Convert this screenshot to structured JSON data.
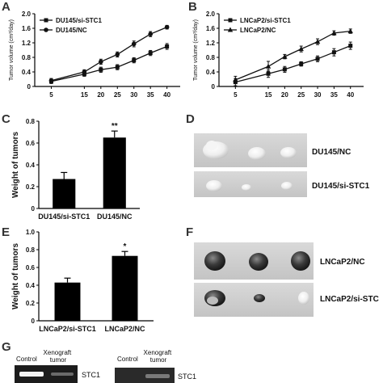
{
  "panels": {
    "A": "A",
    "B": "B",
    "C": "C",
    "D": "D",
    "E": "E",
    "F": "F",
    "G": "G"
  },
  "chart_data": [
    {
      "panel": "A",
      "type": "line",
      "ylabel": "Tumor volume (cm³/day)",
      "x": [
        5,
        15,
        20,
        25,
        30,
        35,
        40
      ],
      "xticks": [
        "5",
        "15",
        "20",
        "25",
        "30",
        "35",
        "40"
      ],
      "ylim": [
        0,
        2.0
      ],
      "yticks": [
        "0",
        "0.4",
        "0.8",
        "1.2",
        "1.6",
        "2.0"
      ],
      "legend": "top-left",
      "series": [
        {
          "name": "DU145/si-STC1",
          "marker": "square",
          "values": [
            0.14,
            0.34,
            0.46,
            0.53,
            0.72,
            0.92,
            1.1
          ],
          "errors": [
            0.06,
            0.06,
            0.07,
            0.07,
            0.07,
            0.07,
            0.08
          ]
        },
        {
          "name": "DU145/NC",
          "marker": "circle",
          "values": [
            0.16,
            0.4,
            0.68,
            0.88,
            1.17,
            1.44,
            1.63
          ],
          "errors": [
            0.06,
            0.06,
            0.07,
            0.07,
            0.08,
            0.07,
            0.05
          ]
        }
      ]
    },
    {
      "panel": "B",
      "type": "line",
      "ylabel": "Tumor volume (cm³/day)",
      "x": [
        5,
        15,
        20,
        25,
        30,
        35,
        40
      ],
      "xticks": [
        "5",
        "15",
        "20",
        "25",
        "30",
        "35",
        "40"
      ],
      "ylim": [
        0,
        2.0
      ],
      "yticks": [
        "0",
        "0.4",
        "0.8",
        "1.2",
        "1.6",
        "2.0"
      ],
      "legend": "top-left",
      "series": [
        {
          "name": "LNCaP2/si-STC1",
          "marker": "square",
          "values": [
            0.12,
            0.35,
            0.47,
            0.62,
            0.76,
            0.94,
            1.12
          ],
          "errors": [
            0.1,
            0.1,
            0.08,
            0.06,
            0.08,
            0.1,
            0.1
          ]
        },
        {
          "name": "LNCaP2/NC",
          "marker": "triangle",
          "values": [
            0.18,
            0.55,
            0.82,
            1.03,
            1.23,
            1.47,
            1.52
          ],
          "errors": [
            0.1,
            0.14,
            0.06,
            0.08,
            0.08,
            0.06,
            0.06
          ]
        }
      ]
    },
    {
      "panel": "C",
      "type": "bar",
      "ylabel": "Weight of tumors",
      "categories": [
        "DU145/si-STC1",
        "DU145/NC"
      ],
      "values": [
        0.27,
        0.65
      ],
      "errors": [
        0.06,
        0.06
      ],
      "annotations": [
        "",
        "**"
      ],
      "ylim": [
        0,
        0.8
      ],
      "yticks": [
        "0",
        "0.2",
        "0.4",
        "0.6",
        "0.8"
      ]
    },
    {
      "panel": "E",
      "type": "bar",
      "ylabel": "Weight of tumors",
      "categories": [
        "LNCaP2/si-STC1",
        "LNCaP2/NC"
      ],
      "values": [
        0.43,
        0.73
      ],
      "errors": [
        0.05,
        0.05
      ],
      "annotations": [
        "",
        "*"
      ],
      "ylim": [
        0,
        1.0
      ],
      "yticks": [
        "0",
        "0.2",
        "0.4",
        "0.6",
        "0.8",
        "1.0"
      ]
    }
  ],
  "photos": {
    "D": {
      "labels": [
        "DU145/NC",
        "DU145/si-STC1"
      ]
    },
    "F": {
      "labels": [
        "LNCaP2/NC",
        "LNCaP2/si-STC"
      ]
    },
    "G": {
      "left": {
        "lanes": [
          "Control",
          "Xenograft tumor"
        ],
        "band_label": "STC1"
      },
      "right": {
        "lanes": [
          "Control",
          "Xenograft tumor"
        ],
        "band_label": "STC1"
      }
    }
  }
}
